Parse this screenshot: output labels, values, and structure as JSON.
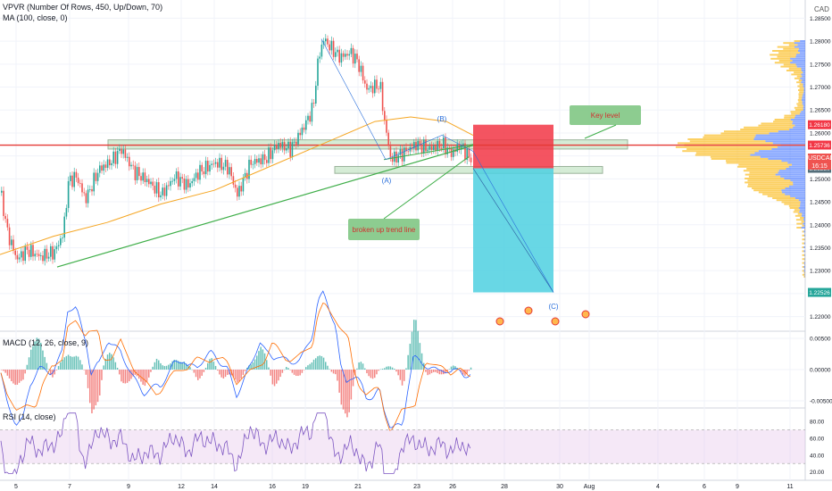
{
  "indicators": {
    "vpvr": "VPVR (Number Of Rows, 450, Up/Down, 70)",
    "ma": "MA (100, close, 0)",
    "macd": "MACD (12, 26, close, 9)",
    "rsi": "RSI (14, close)"
  },
  "currency": "CAD",
  "symbol": "USDCAD",
  "countdown": "16:15",
  "annotations": {
    "key_level": "Key level",
    "broken_trend": "broken up trend line",
    "wave_a": "(A)",
    "wave_b": "(B)",
    "wave_c": "(C)"
  },
  "colors": {
    "up": "#26a69a",
    "down": "#ef5350",
    "ma": "#f5a623",
    "trend": "#3fae49",
    "stop": "#f23645",
    "target": "#4dd0e1",
    "rsi_band": "#e1bee7",
    "vp_up": "#2962ff",
    "vp_down": "#fbc02d"
  },
  "price_axis": {
    "ticks": [
      "1.28500",
      "1.28000",
      "1.27500",
      "1.27000",
      "1.26500",
      "1.26000",
      "1.25500",
      "1.25000",
      "1.24500",
      "1.24000",
      "1.23500",
      "1.23000",
      "1.22500",
      "1.22000"
    ],
    "badges": [
      {
        "text": "1.26180",
        "color": "#f23645"
      },
      {
        "text": "1.25736",
        "color": "#f23645"
      },
      {
        "text": "1.25408",
        "color": "#ef5350"
      },
      {
        "text": "1.25230",
        "color": "#546e7a"
      },
      {
        "text": "1.22526",
        "color": "#26a69a"
      }
    ]
  },
  "macd_axis": {
    "ticks": [
      "0.00500",
      "0.00000",
      "-0.00500"
    ]
  },
  "rsi_axis": {
    "ticks": [
      "80.00",
      "60.00",
      "40.00",
      "20.00"
    ]
  },
  "time_axis": {
    "ticks": [
      "5",
      "7",
      "9",
      "12",
      "14",
      "16",
      "19",
      "21",
      "23",
      "26",
      "28",
      "30",
      "Aug",
      "4",
      "6",
      "9",
      "11"
    ]
  },
  "chart_data": {
    "type": "candlestick",
    "symbol": "USDCAD",
    "price_range": [
      1.217,
      1.288
    ],
    "key_levels": [
      1.2618,
      1.25736,
      1.25408,
      1.2523,
      1.22526
    ],
    "resistance_zone": [
      1.2565,
      1.2585
    ],
    "support_zone": [
      1.2512,
      1.2527
    ],
    "trade": {
      "entry": 1.2523,
      "stop": 1.2618,
      "target": 1.22526
    },
    "macd_range": [
      -0.006,
      0.006
    ],
    "rsi_range": [
      10,
      95
    ],
    "rsi_bands": [
      70,
      30
    ]
  }
}
